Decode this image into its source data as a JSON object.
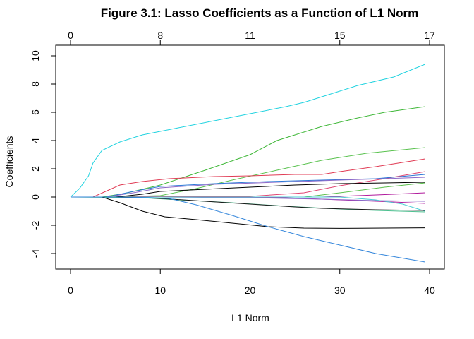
{
  "chart_data": {
    "type": "line",
    "title": "Figure 3.1: Lasso Coefficients as a Function of L1 Norm",
    "xlabel": "L1 Norm",
    "ylabel": "Coefficients",
    "xlim": [
      0,
      40
    ],
    "ylim": [
      -5,
      10
    ],
    "x_ticks": [
      0,
      10,
      20,
      30,
      40
    ],
    "y_ticks": [
      -4,
      -2,
      0,
      2,
      4,
      6,
      8,
      10
    ],
    "top_axis": {
      "positions": [
        0,
        10,
        20,
        30,
        40
      ],
      "labels": [
        "0",
        "8",
        "11",
        "15",
        "17"
      ]
    },
    "grid": false,
    "legend": "none",
    "series": [
      {
        "color": "#22d3e0",
        "points": [
          [
            0,
            0
          ],
          [
            1,
            0.6
          ],
          [
            2,
            1.5
          ],
          [
            2.5,
            2.4
          ],
          [
            3.5,
            3.3
          ],
          [
            5.5,
            3.9
          ],
          [
            8,
            4.4
          ],
          [
            12,
            4.9
          ],
          [
            16,
            5.4
          ],
          [
            20,
            5.9
          ],
          [
            24,
            6.4
          ],
          [
            26,
            6.7
          ],
          [
            30,
            7.5
          ],
          [
            32,
            7.9
          ],
          [
            36,
            8.5
          ],
          [
            39.5,
            9.4
          ]
        ]
      },
      {
        "color": "#41b83a",
        "points": [
          [
            0,
            0
          ],
          [
            3.5,
            0
          ],
          [
            6,
            0.25
          ],
          [
            10,
            0.85
          ],
          [
            15,
            1.9
          ],
          [
            20,
            3.0
          ],
          [
            23,
            4.0
          ],
          [
            28,
            5.0
          ],
          [
            32,
            5.6
          ],
          [
            35,
            6.0
          ],
          [
            39.5,
            6.4
          ]
        ]
      },
      {
        "color": "#5ac24f",
        "points": [
          [
            0,
            0
          ],
          [
            4,
            0
          ],
          [
            10,
            0.1
          ],
          [
            14,
            0.6
          ],
          [
            18,
            1.2
          ],
          [
            23,
            1.9
          ],
          [
            28,
            2.6
          ],
          [
            33,
            3.1
          ],
          [
            39.5,
            3.5
          ]
        ]
      },
      {
        "color": "#e03b54",
        "points": [
          [
            0,
            0
          ],
          [
            2.5,
            0
          ],
          [
            5.5,
            0.85
          ],
          [
            8,
            1.1
          ],
          [
            11,
            1.3
          ],
          [
            16,
            1.45
          ],
          [
            20,
            1.5
          ],
          [
            25,
            1.6
          ],
          [
            28,
            1.6
          ],
          [
            30,
            1.8
          ],
          [
            34,
            2.15
          ],
          [
            39.5,
            2.7
          ]
        ]
      },
      {
        "color": "#df4572",
        "points": [
          [
            0,
            0
          ],
          [
            4,
            0
          ],
          [
            12,
            0.05
          ],
          [
            20,
            0.05
          ],
          [
            26,
            0.3
          ],
          [
            30,
            0.8
          ],
          [
            35,
            1.3
          ],
          [
            39.5,
            1.8
          ]
        ]
      },
      {
        "color": "#2d78d6",
        "points": [
          [
            0,
            0
          ],
          [
            4,
            0
          ],
          [
            7,
            0.4
          ],
          [
            10,
            0.75
          ],
          [
            16,
            0.95
          ],
          [
            22,
            1.1
          ],
          [
            28,
            1.2
          ],
          [
            34,
            1.3
          ],
          [
            39.5,
            1.6
          ]
        ]
      },
      {
        "color": "#8b68c8",
        "points": [
          [
            0,
            0
          ],
          [
            4,
            0
          ],
          [
            7,
            0.3
          ],
          [
            10,
            0.65
          ],
          [
            16,
            0.9
          ],
          [
            23,
            1.05
          ],
          [
            30,
            1.2
          ],
          [
            35,
            1.3
          ],
          [
            39.5,
            1.4
          ]
        ]
      },
      {
        "color": "#000000",
        "points": [
          [
            0,
            0
          ],
          [
            5,
            0
          ],
          [
            8,
            0.2
          ],
          [
            10,
            0.4
          ],
          [
            15,
            0.55
          ],
          [
            20,
            0.7
          ],
          [
            25,
            0.85
          ],
          [
            30,
            0.95
          ],
          [
            35,
            1.0
          ],
          [
            39.5,
            1.05
          ]
        ]
      },
      {
        "color": "#5cc04e",
        "points": [
          [
            0,
            0
          ],
          [
            10,
            0
          ],
          [
            20,
            0
          ],
          [
            26,
            0
          ],
          [
            30,
            0.3
          ],
          [
            35,
            0.7
          ],
          [
            39.5,
            1.0
          ]
        ]
      },
      {
        "color": "#b0199c",
        "points": [
          [
            0,
            0
          ],
          [
            10,
            0
          ],
          [
            20,
            0
          ],
          [
            28,
            0
          ],
          [
            32,
            0.1
          ],
          [
            36,
            0.2
          ],
          [
            39.5,
            0.3
          ]
        ]
      },
      {
        "color": "#b0199c",
        "points": [
          [
            0,
            0
          ],
          [
            10,
            0
          ],
          [
            18,
            0
          ],
          [
            24,
            -0.05
          ],
          [
            28,
            -0.15
          ],
          [
            32,
            -0.25
          ],
          [
            36,
            -0.35
          ],
          [
            39.5,
            -0.45
          ]
        ]
      },
      {
        "color": "#8b68c8",
        "points": [
          [
            0,
            0
          ],
          [
            10,
            0
          ],
          [
            20,
            -0.05
          ],
          [
            28,
            -0.15
          ],
          [
            34,
            -0.25
          ],
          [
            39.5,
            -0.3
          ]
        ]
      },
      {
        "color": "#4ccfd4",
        "points": [
          [
            0,
            0
          ],
          [
            10,
            0
          ],
          [
            20,
            0
          ],
          [
            30,
            0
          ],
          [
            34,
            -0.2
          ],
          [
            37,
            -0.5
          ],
          [
            39.5,
            -1.0
          ]
        ]
      },
      {
        "color": "#4cbf8f",
        "points": [
          [
            0,
            0
          ],
          [
            8,
            -0.05
          ],
          [
            12,
            -0.2
          ],
          [
            18,
            -0.4
          ],
          [
            24,
            -0.65
          ],
          [
            30,
            -0.85
          ],
          [
            34,
            -0.95
          ],
          [
            39.5,
            -1.05
          ]
        ]
      },
      {
        "color": "#1a1a1a",
        "points": [
          [
            0,
            0
          ],
          [
            5,
            0
          ],
          [
            8,
            -0.05
          ],
          [
            10,
            -0.1
          ],
          [
            15,
            -0.3
          ],
          [
            20,
            -0.5
          ],
          [
            25,
            -0.7
          ],
          [
            28,
            -0.8
          ],
          [
            34,
            -0.9
          ],
          [
            39.5,
            -0.95
          ]
        ]
      },
      {
        "color": "#000000",
        "points": [
          [
            0,
            0
          ],
          [
            3.5,
            0
          ],
          [
            5.5,
            -0.4
          ],
          [
            8,
            -1.0
          ],
          [
            10.5,
            -1.4
          ],
          [
            14,
            -1.6
          ],
          [
            18,
            -1.85
          ],
          [
            22,
            -2.1
          ],
          [
            26,
            -2.2
          ],
          [
            30,
            -2.22
          ],
          [
            35,
            -2.2
          ],
          [
            39.5,
            -2.18
          ]
        ]
      },
      {
        "color": "#3486db",
        "points": [
          [
            0,
            0
          ],
          [
            5,
            0
          ],
          [
            8,
            -0.03
          ],
          [
            11,
            -0.1
          ],
          [
            14,
            -0.55
          ],
          [
            18,
            -1.3
          ],
          [
            22,
            -2.1
          ],
          [
            26,
            -2.8
          ],
          [
            30,
            -3.4
          ],
          [
            34,
            -4.0
          ],
          [
            39.5,
            -4.6
          ]
        ]
      }
    ]
  }
}
